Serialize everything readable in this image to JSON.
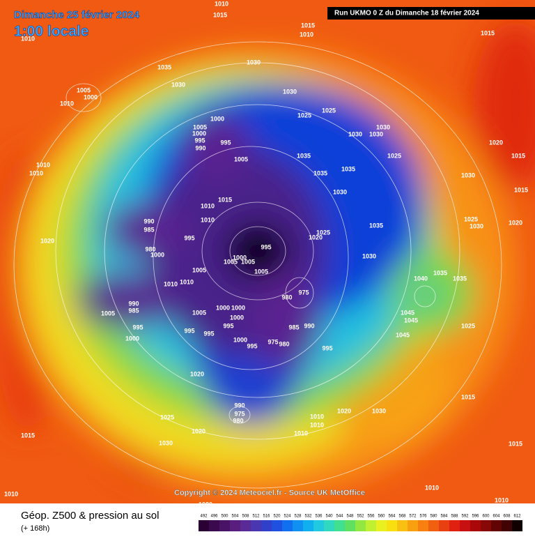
{
  "header": {
    "date": "Dimanche 25 février 2024",
    "time": "1:00 locale",
    "run": "Run UKMO 0 Z du Dimanche 18 février 2024"
  },
  "copyright": "Copyright © 2024 Meteociel.fr - Source UK MetOffice",
  "footer": {
    "title": "Géop. Z500 & pression au sol",
    "subtitle": "(+ 168h)"
  },
  "isobar_labels": [
    1010,
    1015,
    1010,
    1015,
    1010,
    1015,
    1035,
    1030,
    1030,
    1005,
    1000,
    1010,
    1030,
    1025,
    1025,
    1000,
    1005,
    1000,
    995,
    990,
    995,
    1030,
    1030,
    1030,
    1025,
    1035,
    1035,
    1035,
    1020,
    1015,
    1010,
    1010,
    1005,
    1030,
    1015,
    1030,
    1015,
    1010,
    990,
    985,
    1010,
    995,
    1025,
    1030,
    1020,
    1035,
    1025,
    1020,
    1020,
    995,
    980,
    1000,
    1000,
    1005,
    1005,
    1030,
    1005,
    1005,
    1035,
    1040,
    1035,
    1010,
    1010,
    975,
    980,
    990,
    985,
    1000,
    1000,
    1005,
    1005,
    1000,
    1045,
    1045,
    995,
    990,
    985,
    995,
    1025,
    995,
    995,
    1000,
    975,
    980,
    1000,
    995,
    995,
    1045,
    1020,
    1015,
    990,
    975,
    980,
    1010,
    1010,
    1020,
    1030,
    1025,
    1020,
    1010,
    1015,
    1030,
    1015,
    1010,
    1010,
    1010,
    1020
  ],
  "scale": {
    "values": [
      492,
      496,
      500,
      504,
      508,
      512,
      516,
      520,
      524,
      528,
      532,
      536,
      540,
      544,
      548,
      552,
      556,
      560,
      564,
      568,
      572,
      576,
      580,
      584,
      588,
      592,
      596,
      600,
      604,
      608,
      612
    ],
    "colors": [
      "#2a0035",
      "#3b0a4e",
      "#4a1466",
      "#5a1e7e",
      "#5a2a96",
      "#4a36b0",
      "#3040c8",
      "#2050e0",
      "#1070f0",
      "#1090f0",
      "#10b0f0",
      "#20c8e0",
      "#30d8c0",
      "#40e090",
      "#60e060",
      "#90e840",
      "#c0f030",
      "#e8f020",
      "#f8e010",
      "#f8c010",
      "#f8a010",
      "#f88010",
      "#f06010",
      "#e84010",
      "#e02010",
      "#c81010",
      "#a80808",
      "#880808",
      "#600404",
      "#400202",
      "#100000"
    ]
  }
}
